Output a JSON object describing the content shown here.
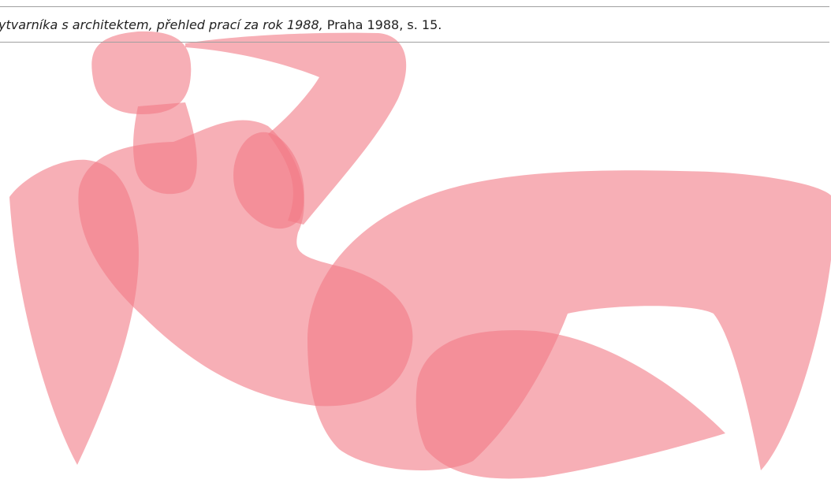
{
  "citation": {
    "italic": "ytvarníka s architektem, přehled prací za rok 1988,",
    "rest": "Praha 1988, s. 15."
  }
}
